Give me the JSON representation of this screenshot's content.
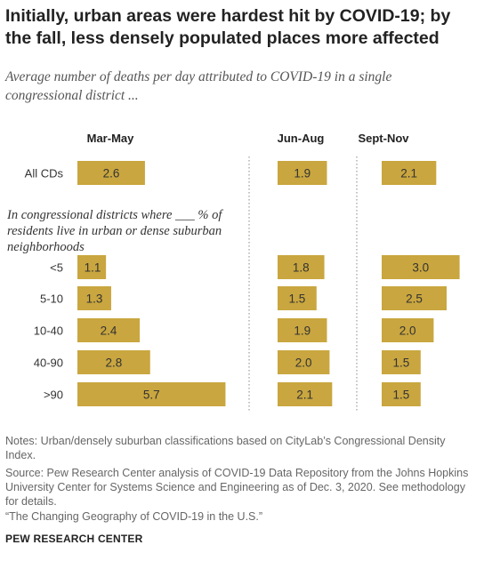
{
  "header": {
    "title": "Initially, urban areas were hardest hit by COVID-19; by the fall, less densely populated places more affected",
    "subtitle": "Average number of deaths per day attributed to COVID-19 in a single congressional district ..."
  },
  "chart_data": {
    "type": "bar",
    "orientation": "horizontal",
    "panels": [
      "Mar-May",
      "Jun-Aug",
      "Sept-Nov"
    ],
    "categories": [
      "All CDs",
      "<5",
      "5-10",
      "10-40",
      "40-90",
      ">90"
    ],
    "group_label": "In congressional districts where ___ % of residents live in urban or dense suburban neighborhoods",
    "series": [
      {
        "panel": "Mar-May",
        "values": [
          2.6,
          1.1,
          1.3,
          2.4,
          2.8,
          5.7
        ]
      },
      {
        "panel": "Jun-Aug",
        "values": [
          1.9,
          1.8,
          1.5,
          1.9,
          2.0,
          2.1
        ]
      },
      {
        "panel": "Sept-Nov",
        "values": [
          2.1,
          3.0,
          2.5,
          2.0,
          1.5,
          1.5
        ]
      }
    ],
    "bar_color": "#c9a63f",
    "grid": false
  },
  "notes": {
    "notes": "Notes: Urban/densely suburban classifications based on CityLab’s Congressional Density Index.",
    "source": "Source: Pew Research Center analysis of COVID-19 Data Repository from the Johns Hopkins University Center for Systems Science and Engineering as of Dec. 3, 2020. See methodology for details.",
    "report": "“The Changing Geography of COVID-19 in the U.S.”"
  },
  "brand": "PEW RESEARCH CENTER"
}
